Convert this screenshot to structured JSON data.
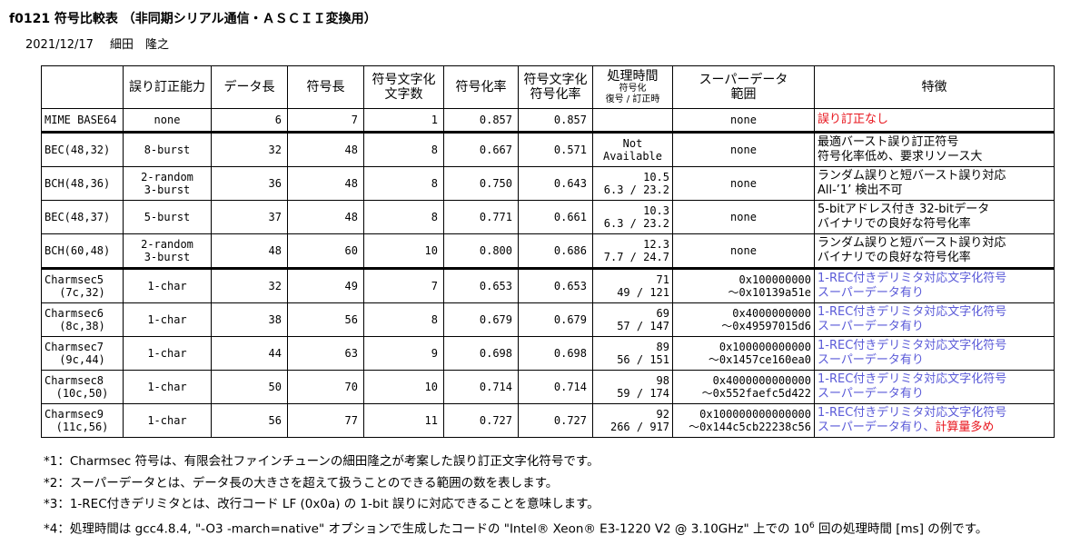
{
  "header": {
    "title": "f0121 符号比較表 （非同期シリアル通信・ＡＳＣＩＩ変換用）",
    "date": "2021/12/17",
    "author": "細田　隆之"
  },
  "table": {
    "columns": [
      [
        "誤り訂正能力"
      ],
      [
        "データ長"
      ],
      [
        "符号長"
      ],
      [
        "符号文字化",
        "文字数"
      ],
      [
        "符号化率"
      ],
      [
        "符号文字化",
        "符号化率"
      ],
      [
        "処理時間",
        "符号化",
        "復号 / 訂正時"
      ],
      [
        "スーパーデータ",
        "範囲"
      ],
      [
        "特徴"
      ]
    ],
    "bar_colors": {
      "data_length": "#d81b80",
      "code_length": "#f05a5a",
      "chars": "#ffb22a",
      "rate": "#4cb84c",
      "char_rate": "#2a86e0"
    },
    "groups": [
      {
        "rows": [
          {
            "name": [
              "MIME BASE64"
            ],
            "correction": [
              "none"
            ],
            "data_length": 6,
            "code_length": 7,
            "chars": 1,
            "rate": "0.857",
            "char_rate": "0.857",
            "superdata": [
              "none"
            ],
            "features": [
              [
                {
                  "text": "誤り訂正なし",
                  "color": "#e8141c"
                }
              ]
            ]
          }
        ]
      },
      {
        "rows": [
          {
            "name": [
              "BEC(48,32)"
            ],
            "correction": [
              "8-burst"
            ],
            "data_length": 32,
            "code_length": 48,
            "chars": 8,
            "rate": "0.667",
            "char_rate": "0.571",
            "time": [
              "Not",
              "Available"
            ],
            "superdata": [
              "none"
            ],
            "features": [
              [
                {
                  "text": "最適バースト誤り訂正符号"
                }
              ],
              [
                {
                  "text": "符号化率低め、要求リソース大"
                }
              ]
            ]
          },
          {
            "name": [
              "BCH(48,36)"
            ],
            "correction": [
              "2-random",
              "3-burst"
            ],
            "data_length": 36,
            "code_length": 48,
            "chars": 8,
            "rate": "0.750",
            "char_rate": "0.643",
            "time": [
              "10.5",
              "6.3 / 23.2"
            ],
            "superdata": [
              "none"
            ],
            "features": [
              [
                {
                  "text": "ランダム誤りと短バースト誤り対応"
                }
              ],
              [
                {
                  "text": "All-’1’ 検出不可"
                }
              ]
            ]
          },
          {
            "name": [
              "BEC(48,37)"
            ],
            "correction": [
              "5-burst"
            ],
            "data_length": 37,
            "code_length": 48,
            "chars": 8,
            "rate": "0.771",
            "char_rate": "0.661",
            "time": [
              "10.3",
              "6.3 / 23.2"
            ],
            "superdata": [
              "none"
            ],
            "features": [
              [
                {
                  "text": "5-bitアドレス付き 32-bitデータ"
                }
              ],
              [
                {
                  "text": "バイナリでの良好な符号化率"
                }
              ]
            ]
          },
          {
            "name": [
              "BCH(60,48)"
            ],
            "correction": [
              "2-random",
              "3-burst"
            ],
            "data_length": 48,
            "code_length": 60,
            "chars": 10,
            "rate": "0.800",
            "char_rate": "0.686",
            "time": [
              "12.3",
              "7.7 / 24.7"
            ],
            "superdata": [
              "none"
            ],
            "features": [
              [
                {
                  "text": "ランダム誤りと短バースト誤り対応"
                }
              ],
              [
                {
                  "text": "バイナリでの良好な符号化率"
                }
              ]
            ]
          }
        ]
      },
      {
        "rows": [
          {
            "name": [
              "Charmsec5",
              "(7c,32)"
            ],
            "correction": [
              "1-char"
            ],
            "data_length": 32,
            "code_length": 49,
            "chars": 7,
            "rate": "0.653",
            "char_rate": "0.653",
            "time": [
              "71",
              "49 / 121"
            ],
            "superdata": [
              "0x100000000",
              "～0x10139a51e"
            ],
            "features": [
              [
                {
                  "text": "1-REC付きデリミタ対応文字化符号",
                  "color": "#5a5ad8"
                }
              ],
              [
                {
                  "text": "スーパーデータ有り",
                  "color": "#5a5ad8"
                }
              ]
            ]
          },
          {
            "name": [
              "Charmsec6",
              "(8c,38)"
            ],
            "correction": [
              "1-char"
            ],
            "data_length": 38,
            "code_length": 56,
            "chars": 8,
            "rate": "0.679",
            "char_rate": "0.679",
            "time": [
              "69",
              "57 / 147"
            ],
            "superdata": [
              "0x4000000000",
              "～0x49597015d6"
            ],
            "features": [
              [
                {
                  "text": "1-REC付きデリミタ対応文字化符号",
                  "color": "#5a5ad8"
                }
              ],
              [
                {
                  "text": "スーパーデータ有り",
                  "color": "#5a5ad8"
                }
              ]
            ]
          },
          {
            "name": [
              "Charmsec7",
              "(9c,44)"
            ],
            "correction": [
              "1-char"
            ],
            "data_length": 44,
            "code_length": 63,
            "chars": 9,
            "rate": "0.698",
            "char_rate": "0.698",
            "time": [
              "89",
              "56 / 151"
            ],
            "superdata": [
              "0x100000000000",
              "～0x1457ce160ea0"
            ],
            "features": [
              [
                {
                  "text": "1-REC付きデリミタ対応文字化符号",
                  "color": "#5a5ad8"
                }
              ],
              [
                {
                  "text": "スーパーデータ有り",
                  "color": "#5a5ad8"
                }
              ]
            ]
          },
          {
            "name": [
              "Charmsec8",
              "(10c,50)"
            ],
            "correction": [
              "1-char"
            ],
            "data_length": 50,
            "code_length": 70,
            "chars": 10,
            "rate": "0.714",
            "char_rate": "0.714",
            "time": [
              "98",
              "59 / 174"
            ],
            "superdata": [
              "0x4000000000000",
              "～0x552faefc5d422"
            ],
            "features": [
              [
                {
                  "text": "1-REC付きデリミタ対応文字化符号",
                  "color": "#5a5ad8"
                }
              ],
              [
                {
                  "text": "スーパーデータ有り",
                  "color": "#5a5ad8"
                }
              ]
            ]
          },
          {
            "name": [
              "Charmsec9",
              "(11c,56)"
            ],
            "correction": [
              "1-char"
            ],
            "data_length": 56,
            "code_length": 77,
            "chars": 11,
            "rate": "0.727",
            "char_rate": "0.727",
            "time": [
              "92",
              "266 / 917"
            ],
            "superdata": [
              "0x100000000000000",
              "～0x144c5cb22238c56"
            ],
            "features": [
              [
                {
                  "text": "1-REC付きデリミタ対応文字化符号",
                  "color": "#5a5ad8"
                }
              ],
              [
                {
                  "text": "スーパーデータ有り",
                  "color": "#5a5ad8"
                },
                {
                  "text": "、",
                  "color": "#5a5ad8"
                },
                {
                  "text": "計算量多め",
                  "color": "#e8141c"
                }
              ]
            ]
          }
        ]
      }
    ]
  },
  "footnotes": [
    [
      "*1：Charmsec 符号は、有限会社ファインチューンの細田隆之が考案した誤り訂正文字化符号です。"
    ],
    [
      "*2：スーパーデータとは、データ長の大きさを超えて扱うことのできる範囲の数を表します。"
    ],
    [
      "*3：1-REC付きデリミタとは、改行コード LF (0x0a) の 1-bit 誤りに対応できることを意味します。"
    ],
    [
      "*4：処理時間は gcc4.8.4, \"-O3 -march=native\" オプションで生成したコードの \"Intel® Xeon® E3-1220 V2 @ 3.10GHz\" 上での 10",
      "6",
      " 回の処理時間 [ms] の例です。"
    ]
  ]
}
